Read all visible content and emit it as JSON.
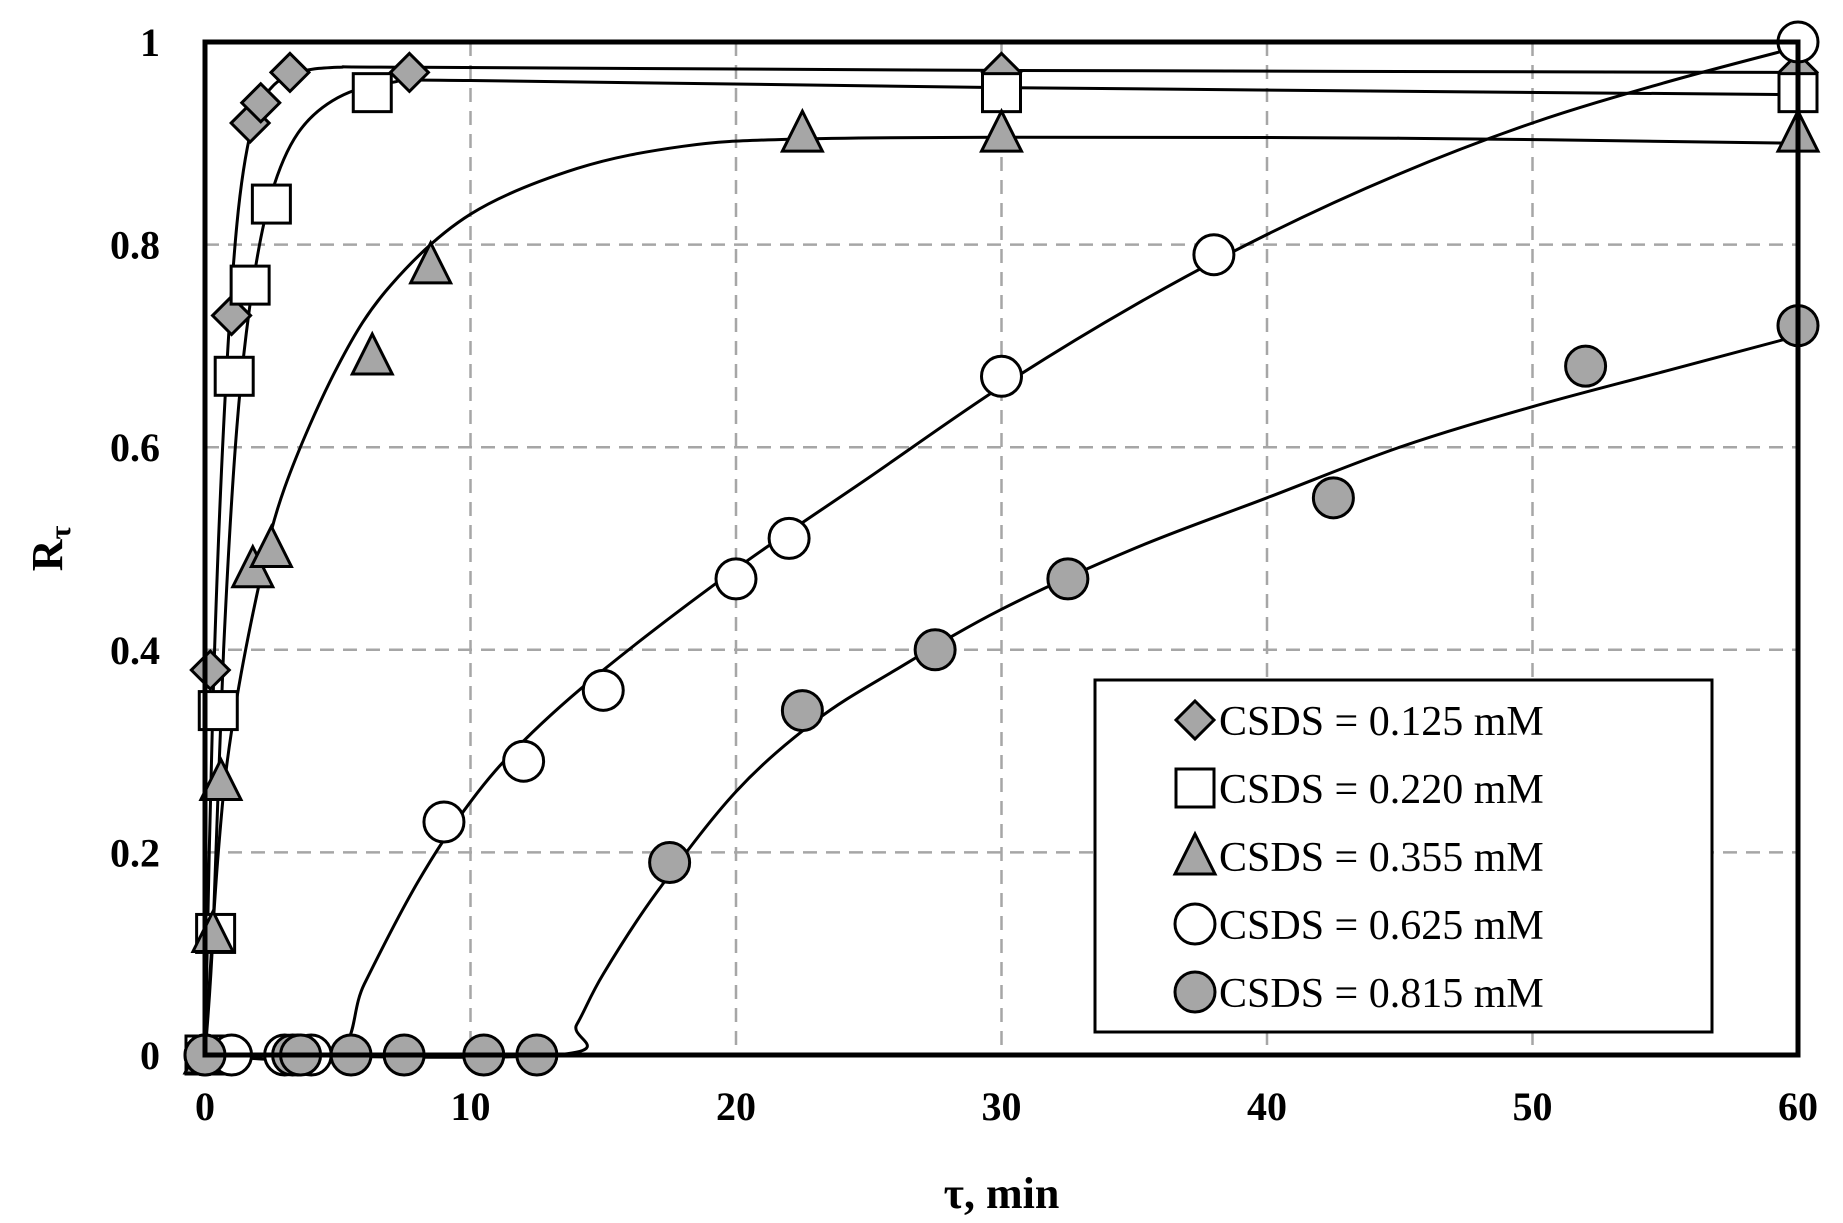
{
  "chart_data": {
    "type": "scatter",
    "xlabel": "τ, min",
    "ylabel": "Rτ",
    "ylabel_main": "R",
    "ylabel_sub": "τ",
    "xlim": [
      0,
      60
    ],
    "ylim": [
      0,
      1
    ],
    "xticks": [
      "0",
      "10",
      "20",
      "30",
      "40",
      "50",
      "60"
    ],
    "yticks": [
      "0",
      "0.2",
      "0.4",
      "0.6",
      "0.8",
      "1"
    ],
    "grid": true,
    "legend_position": "bottom-right",
    "colors": {
      "marker_fill": "#a6a6a6",
      "marker_edge": "#000000",
      "line": "#000000",
      "grid": "#a6a6a6"
    },
    "series": [
      {
        "name": "CSDS = 0.125 mM",
        "marker": "diamond",
        "filled": true,
        "points": [
          [
            0,
            0
          ],
          [
            0.2,
            0.38
          ],
          [
            1,
            0.73
          ],
          [
            1.7,
            0.92
          ],
          [
            2.1,
            0.94
          ],
          [
            3.2,
            0.97
          ],
          [
            7.7,
            0.97
          ],
          [
            30,
            0.97
          ],
          [
            60,
            0.97
          ]
        ],
        "fit": [
          [
            0,
            0
          ],
          [
            0.3,
            0.35
          ],
          [
            0.7,
            0.62
          ],
          [
            1.2,
            0.82
          ],
          [
            1.8,
            0.92
          ],
          [
            2.5,
            0.955
          ],
          [
            3.5,
            0.97
          ],
          [
            5,
            0.975
          ],
          [
            8,
            0.975
          ],
          [
            30,
            0.972
          ],
          [
            60,
            0.97
          ]
        ]
      },
      {
        "name": "CSDS = 0.220 mM",
        "marker": "square",
        "filled": false,
        "points": [
          [
            0,
            0
          ],
          [
            0.4,
            0.12
          ],
          [
            0.5,
            0.34
          ],
          [
            1.1,
            0.67
          ],
          [
            1.7,
            0.76
          ],
          [
            2.5,
            0.84
          ],
          [
            6.3,
            0.95
          ],
          [
            30,
            0.95
          ],
          [
            60,
            0.95
          ]
        ],
        "fit": [
          [
            0,
            0
          ],
          [
            0.3,
            0.12
          ],
          [
            0.7,
            0.4
          ],
          [
            1.2,
            0.62
          ],
          [
            1.8,
            0.76
          ],
          [
            2.5,
            0.85
          ],
          [
            3.5,
            0.91
          ],
          [
            5,
            0.945
          ],
          [
            7,
            0.96
          ],
          [
            10,
            0.962
          ],
          [
            30,
            0.955
          ],
          [
            60,
            0.948
          ]
        ]
      },
      {
        "name": "CSDS = 0.355 mM",
        "marker": "triangle",
        "filled": true,
        "points": [
          [
            0,
            0
          ],
          [
            0.3,
            0.12
          ],
          [
            0.6,
            0.27
          ],
          [
            1.8,
            0.48
          ],
          [
            2.5,
            0.5
          ],
          [
            6.3,
            0.69
          ],
          [
            8.5,
            0.78
          ],
          [
            22.5,
            0.91
          ],
          [
            30,
            0.91
          ],
          [
            60,
            0.91
          ]
        ],
        "fit": [
          [
            0,
            0
          ],
          [
            0.5,
            0.2
          ],
          [
            1,
            0.32
          ],
          [
            2,
            0.46
          ],
          [
            3,
            0.56
          ],
          [
            5,
            0.68
          ],
          [
            7,
            0.76
          ],
          [
            10,
            0.83
          ],
          [
            14,
            0.875
          ],
          [
            18,
            0.897
          ],
          [
            22,
            0.904
          ],
          [
            30,
            0.906
          ],
          [
            45,
            0.905
          ],
          [
            60,
            0.9
          ]
        ]
      },
      {
        "name": "CSDS = 0.625 mM",
        "marker": "circle",
        "filled": false,
        "points": [
          [
            0,
            0
          ],
          [
            1,
            0
          ],
          [
            3,
            0
          ],
          [
            3.5,
            0
          ],
          [
            4,
            0
          ],
          [
            9,
            0.23
          ],
          [
            12,
            0.29
          ],
          [
            15,
            0.36
          ],
          [
            20,
            0.47
          ],
          [
            22,
            0.51
          ],
          [
            30,
            0.67
          ],
          [
            38,
            0.79
          ],
          [
            60,
            1
          ]
        ],
        "fit": [
          [
            0,
            0
          ],
          [
            4.8,
            0
          ],
          [
            6,
            0.07
          ],
          [
            8,
            0.17
          ],
          [
            10,
            0.25
          ],
          [
            12,
            0.31
          ],
          [
            15,
            0.38
          ],
          [
            20,
            0.48
          ],
          [
            25,
            0.57
          ],
          [
            30,
            0.66
          ],
          [
            35,
            0.74
          ],
          [
            40,
            0.81
          ],
          [
            45,
            0.87
          ],
          [
            50,
            0.92
          ],
          [
            55,
            0.96
          ],
          [
            60,
            0.995
          ]
        ]
      },
      {
        "name": "CSDS = 0.815 mM",
        "marker": "circle",
        "filled": true,
        "points": [
          [
            0,
            0
          ],
          [
            3.3,
            0
          ],
          [
            3.6,
            0
          ],
          [
            5.5,
            0
          ],
          [
            7.5,
            0
          ],
          [
            10.5,
            0
          ],
          [
            12.5,
            0
          ],
          [
            17.5,
            0.19
          ],
          [
            22.5,
            0.34
          ],
          [
            27.5,
            0.4
          ],
          [
            32.5,
            0.47
          ],
          [
            42.5,
            0.55
          ],
          [
            52,
            0.68
          ],
          [
            60,
            0.72
          ]
        ],
        "fit": [
          [
            0,
            0
          ],
          [
            13.2,
            0
          ],
          [
            14,
            0.03
          ],
          [
            15,
            0.08
          ],
          [
            17,
            0.16
          ],
          [
            20,
            0.26
          ],
          [
            23,
            0.33
          ],
          [
            26,
            0.38
          ],
          [
            30,
            0.44
          ],
          [
            35,
            0.5
          ],
          [
            40,
            0.55
          ],
          [
            45,
            0.6
          ],
          [
            50,
            0.64
          ],
          [
            55,
            0.675
          ],
          [
            60,
            0.71
          ]
        ]
      }
    ]
  }
}
